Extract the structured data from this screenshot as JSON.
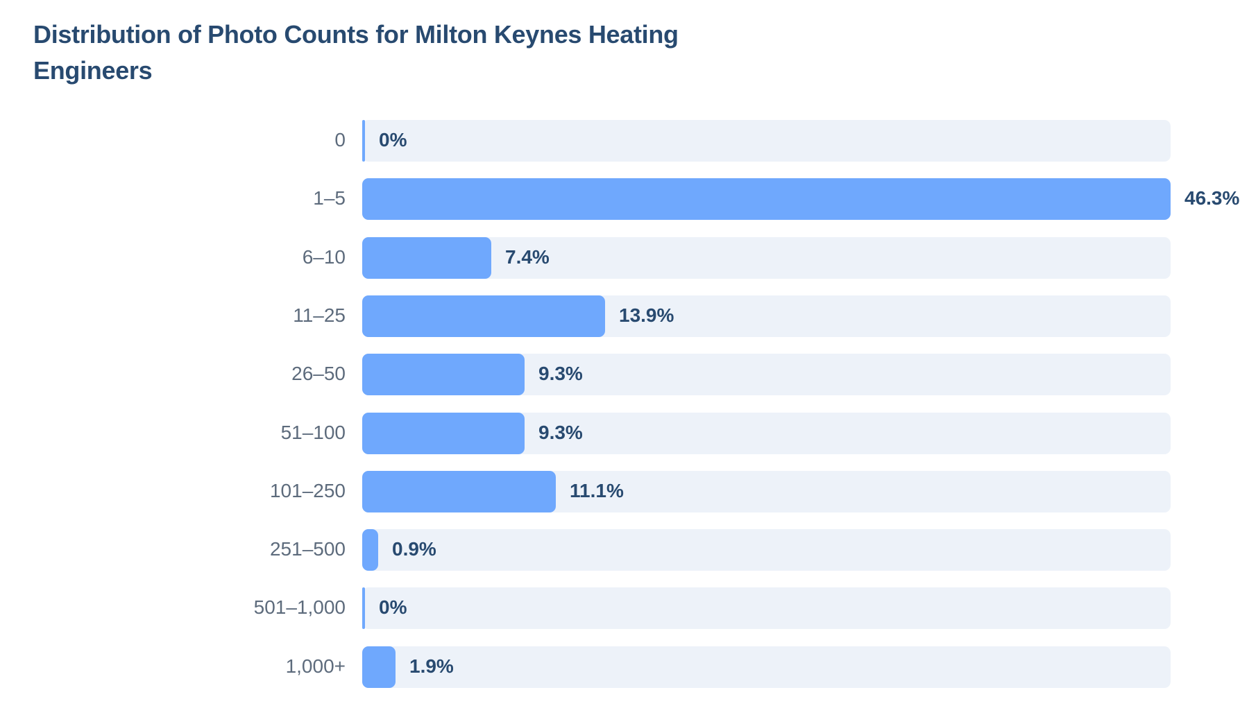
{
  "chart_data": {
    "type": "bar",
    "orientation": "horizontal",
    "title": "Distribution of Photo Counts for Milton Keynes Heating Engineers",
    "xlabel": "",
    "ylabel": "",
    "categories": [
      "0",
      "1–5",
      "6–10",
      "11–25",
      "26–50",
      "51–100",
      "101–250",
      "251–500",
      "501–1,000",
      "1,000+"
    ],
    "values": [
      0,
      46.3,
      7.4,
      13.9,
      9.3,
      9.3,
      11.1,
      0.9,
      0,
      1.9
    ],
    "value_labels": [
      "0%",
      "46.3%",
      "7.4%",
      "13.9%",
      "9.3%",
      "9.3%",
      "11.1%",
      "0.9%",
      "0%",
      "1.9%"
    ],
    "xlim": [
      0,
      46.3
    ],
    "grid": false,
    "legend": "none",
    "colors": {
      "bar": "#6fa8fd",
      "track": "#edf2f9",
      "title": "#284a70",
      "category_label": "#5d6b7c",
      "value_label": "#284a70"
    }
  }
}
